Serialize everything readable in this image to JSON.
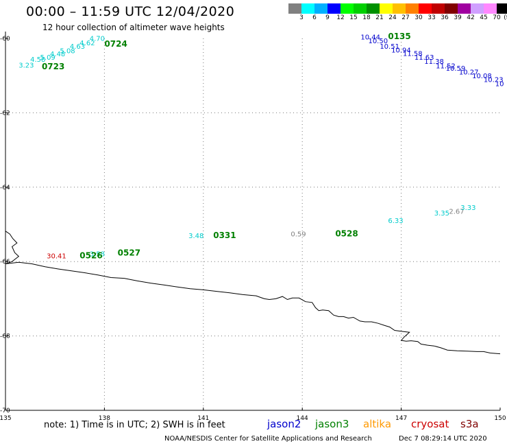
{
  "header": {
    "title": "00:00 – 11:59 UTC 12/04/2020",
    "subtitle": "12 hour collection of altimeter wave heights"
  },
  "legend": {
    "labels": [
      "3",
      "6",
      "9",
      "12",
      "15",
      "18",
      "21",
      "24",
      "27",
      "30",
      "33",
      "36",
      "39",
      "42",
      "45",
      "70"
    ],
    "unit": "(ft)",
    "colors": [
      "#808080",
      "#00ffff",
      "#00b0ff",
      "#0000ff",
      "#00ff00",
      "#00d000",
      "#009000",
      "#ffff00",
      "#ffc000",
      "#ff8000",
      "#ff0000",
      "#c00000",
      "#800000",
      "#a000a0",
      "#d0a0ff",
      "#ff88ff",
      "#000000"
    ]
  },
  "axes": {
    "lat_labels": [
      "-60",
      "-62",
      "-64",
      "-66",
      "-68",
      "-70"
    ],
    "lon_labels": [
      "135",
      "138",
      "141",
      "144",
      "147",
      "150"
    ],
    "lat_range": [
      -70,
      -60
    ],
    "lon_range": [
      135,
      150
    ],
    "grid": true
  },
  "observations": [
    {
      "text": "3.23",
      "lon": 135.4,
      "lat": -60.78,
      "color": "#00cccc",
      "kind": "val"
    },
    {
      "text": "4.58",
      "lon": 135.75,
      "lat": -60.63,
      "color": "#00cccc",
      "kind": "val"
    },
    {
      "text": "5.09",
      "lon": 136.05,
      "lat": -60.57,
      "color": "#00cccc",
      "kind": "val"
    },
    {
      "text": "4.48",
      "lon": 136.35,
      "lat": -60.48,
      "color": "#00cccc",
      "kind": "val"
    },
    {
      "text": "5.08",
      "lon": 136.65,
      "lat": -60.4,
      "color": "#00cccc",
      "kind": "val"
    },
    {
      "text": "4.63",
      "lon": 136.95,
      "lat": -60.28,
      "color": "#00cccc",
      "kind": "val"
    },
    {
      "text": "4.62",
      "lon": 137.25,
      "lat": -60.18,
      "color": "#00cccc",
      "kind": "val"
    },
    {
      "text": "4.70",
      "lon": 137.55,
      "lat": -60.06,
      "color": "#00cccc",
      "kind": "val"
    },
    {
      "text": "0723",
      "lon": 136.1,
      "lat": -60.83,
      "color": "#008000",
      "kind": "time"
    },
    {
      "text": "0724",
      "lon": 138.0,
      "lat": -60.22,
      "color": "#008000",
      "kind": "time"
    },
    {
      "text": "10.44",
      "lon": 145.77,
      "lat": -60.03,
      "color": "#0000cc",
      "kind": "val"
    },
    {
      "text": "10.50",
      "lon": 146.0,
      "lat": -60.13,
      "color": "#0000cc",
      "kind": "val"
    },
    {
      "text": "10.51",
      "lon": 146.35,
      "lat": -60.28,
      "color": "#0000cc",
      "kind": "val"
    },
    {
      "text": "10.94",
      "lon": 146.7,
      "lat": -60.38,
      "color": "#0000cc",
      "kind": "val"
    },
    {
      "text": "11.58",
      "lon": 147.05,
      "lat": -60.47,
      "color": "#0000cc",
      "kind": "val"
    },
    {
      "text": "11.63",
      "lon": 147.4,
      "lat": -60.57,
      "color": "#0000cc",
      "kind": "val"
    },
    {
      "text": "11.38",
      "lon": 147.7,
      "lat": -60.68,
      "color": "#0000cc",
      "kind": "val"
    },
    {
      "text": "11.52",
      "lon": 148.05,
      "lat": -60.8,
      "color": "#0000cc",
      "kind": "val"
    },
    {
      "text": "10.59",
      "lon": 148.35,
      "lat": -60.87,
      "color": "#0000cc",
      "kind": "val"
    },
    {
      "text": "10.27",
      "lon": 148.75,
      "lat": -60.97,
      "color": "#0000cc",
      "kind": "val"
    },
    {
      "text": "10.08",
      "lon": 149.15,
      "lat": -61.07,
      "color": "#0000cc",
      "kind": "val"
    },
    {
      "text": "10.23",
      "lon": 149.5,
      "lat": -61.17,
      "color": "#0000cc",
      "kind": "val"
    },
    {
      "text": "10",
      "lon": 149.85,
      "lat": -61.28,
      "color": "#0000cc",
      "kind": "val"
    },
    {
      "text": "0135",
      "lon": 146.6,
      "lat": -60.02,
      "color": "#008000",
      "kind": "time"
    },
    {
      "text": "6.33",
      "lon": 146.6,
      "lat": -64.96,
      "color": "#00cccc",
      "kind": "val"
    },
    {
      "text": "3.35",
      "lon": 148.0,
      "lat": -64.76,
      "color": "#00cccc",
      "kind": "val"
    },
    {
      "text": "2.67",
      "lon": 148.45,
      "lat": -64.71,
      "color": "#808080",
      "kind": "val"
    },
    {
      "text": "3.33",
      "lon": 148.8,
      "lat": -64.61,
      "color": "#00cccc",
      "kind": "val"
    },
    {
      "text": "3.48",
      "lon": 140.55,
      "lat": -65.37,
      "color": "#00cccc",
      "kind": "val"
    },
    {
      "text": "0331",
      "lon": 141.3,
      "lat": -65.37,
      "color": "#008000",
      "kind": "time"
    },
    {
      "text": "0.59",
      "lon": 143.65,
      "lat": -65.32,
      "color": "#808080",
      "kind": "val"
    },
    {
      "text": "0528",
      "lon": 145.0,
      "lat": -65.32,
      "color": "#008000",
      "kind": "time"
    },
    {
      "text": "30.41",
      "lon": 136.25,
      "lat": -65.91,
      "color": "#cc0000",
      "kind": "val"
    },
    {
      "text": "3.58",
      "lon": 137.55,
      "lat": -65.86,
      "color": "#00cccc",
      "kind": "val"
    },
    {
      "text": "0526",
      "lon": 137.25,
      "lat": -65.91,
      "color": "#008000",
      "kind": "time"
    },
    {
      "text": "0527",
      "lon": 138.4,
      "lat": -65.84,
      "color": "#008000",
      "kind": "time"
    }
  ],
  "coastline": [
    [
      135.0,
      -65.18
    ],
    [
      135.13,
      -65.26
    ],
    [
      135.22,
      -65.38
    ],
    [
      135.35,
      -65.5
    ],
    [
      135.2,
      -65.6
    ],
    [
      135.28,
      -65.76
    ],
    [
      135.4,
      -65.86
    ],
    [
      135.2,
      -66.0
    ],
    [
      135.0,
      -66.06
    ]
  ],
  "coastline_main": [
    [
      135.0,
      -66.06
    ],
    [
      135.4,
      -66.02
    ],
    [
      135.8,
      -66.06
    ],
    [
      136.2,
      -66.14
    ],
    [
      136.6,
      -66.2
    ],
    [
      137.0,
      -66.25
    ],
    [
      137.4,
      -66.3
    ],
    [
      137.8,
      -66.36
    ],
    [
      138.2,
      -66.43
    ],
    [
      138.6,
      -66.45
    ],
    [
      139.0,
      -66.52
    ],
    [
      139.4,
      -66.58
    ],
    [
      139.8,
      -66.63
    ],
    [
      140.2,
      -66.68
    ],
    [
      140.6,
      -66.73
    ],
    [
      141.0,
      -66.76
    ],
    [
      141.4,
      -66.8
    ],
    [
      141.8,
      -66.84
    ],
    [
      142.2,
      -66.89
    ],
    [
      142.6,
      -66.92
    ],
    [
      142.85,
      -67.0
    ],
    [
      143.0,
      -67.02
    ],
    [
      143.2,
      -67.0
    ],
    [
      143.4,
      -66.94
    ],
    [
      143.55,
      -67.02
    ],
    [
      143.7,
      -66.98
    ],
    [
      143.9,
      -66.98
    ],
    [
      144.1,
      -67.08
    ],
    [
      144.3,
      -67.1
    ],
    [
      144.4,
      -67.24
    ],
    [
      144.5,
      -67.32
    ],
    [
      144.62,
      -67.3
    ],
    [
      144.8,
      -67.32
    ],
    [
      144.95,
      -67.44
    ],
    [
      145.1,
      -67.48
    ],
    [
      145.25,
      -67.48
    ],
    [
      145.4,
      -67.52
    ],
    [
      145.55,
      -67.5
    ],
    [
      145.75,
      -67.6
    ],
    [
      145.9,
      -67.62
    ],
    [
      146.1,
      -67.62
    ],
    [
      146.3,
      -67.66
    ],
    [
      146.5,
      -67.72
    ],
    [
      146.65,
      -67.76
    ],
    [
      146.8,
      -67.85
    ],
    [
      147.05,
      -67.88
    ],
    [
      147.25,
      -67.9
    ],
    [
      147.1,
      -68.02
    ],
    [
      147.0,
      -68.12
    ],
    [
      147.15,
      -68.14
    ],
    [
      147.3,
      -68.13
    ],
    [
      147.5,
      -68.15
    ],
    [
      147.6,
      -68.22
    ],
    [
      147.8,
      -68.25
    ],
    [
      148.0,
      -68.27
    ],
    [
      148.2,
      -68.32
    ],
    [
      148.4,
      -68.38
    ],
    [
      148.7,
      -68.4
    ],
    [
      149.0,
      -68.41
    ],
    [
      149.3,
      -68.42
    ],
    [
      149.5,
      -68.42
    ],
    [
      149.7,
      -68.46
    ],
    [
      150.0,
      -68.48
    ]
  ],
  "footer": {
    "note": "note:  1) Time is in UTC;  2) SWH is in feet",
    "satellites": [
      {
        "name": "jason2",
        "color": "#0000cc"
      },
      {
        "name": "jason3",
        "color": "#008000"
      },
      {
        "name": "altika",
        "color": "#ff9900"
      },
      {
        "name": "cryosat",
        "color": "#cc0000"
      },
      {
        "name": "s3a",
        "color": "#800000"
      }
    ],
    "credit": "NOAA/NESDIS Center for Satellite Applications and Research",
    "date": "Dec  7 08:29:14 UTC 2020"
  }
}
